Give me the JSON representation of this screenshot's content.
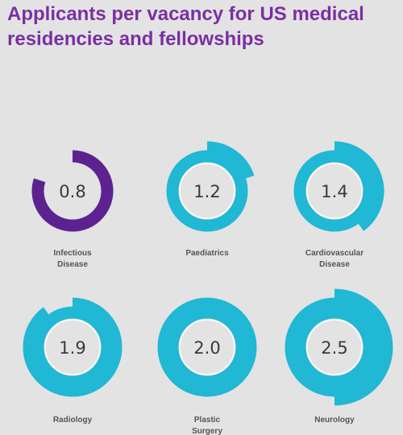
{
  "title": "Applicants per vacancy for US medical residencies and fellowships",
  "colors": {
    "primary": "#20b8d4",
    "highlight": "#5c2390",
    "highlight_text": "#7b2fa3",
    "label_text": "#555555",
    "value_text": "#3a3a3a",
    "background": "#e3e3e3"
  },
  "chart_data": {
    "type": "radial-ring",
    "title": "Applicants per vacancy for US medical residencies and fellowships",
    "unit": "applicants per vacancy",
    "items": [
      {
        "label_lines": [
          "Infectious",
          "Disease"
        ],
        "value": 0.8,
        "value_label": "0.8",
        "highlight": true
      },
      {
        "label_lines": [
          "Paediatrics"
        ],
        "value": 1.2,
        "value_label": "1.2",
        "highlight": false
      },
      {
        "label_lines": [
          "Cardiovascular",
          "Disease"
        ],
        "value": 1.4,
        "value_label": "1.4",
        "highlight": false
      },
      {
        "label_lines": [
          "Radiology"
        ],
        "value": 1.9,
        "value_label": "1.9",
        "highlight": false
      },
      {
        "label_lines": [
          "Plastic",
          "Surgery"
        ],
        "value": 2.0,
        "value_label": "2.0",
        "highlight": false
      },
      {
        "label_lines": [
          "Neurology"
        ],
        "value": 2.5,
        "value_label": "2.5",
        "highlight": false
      }
    ]
  }
}
